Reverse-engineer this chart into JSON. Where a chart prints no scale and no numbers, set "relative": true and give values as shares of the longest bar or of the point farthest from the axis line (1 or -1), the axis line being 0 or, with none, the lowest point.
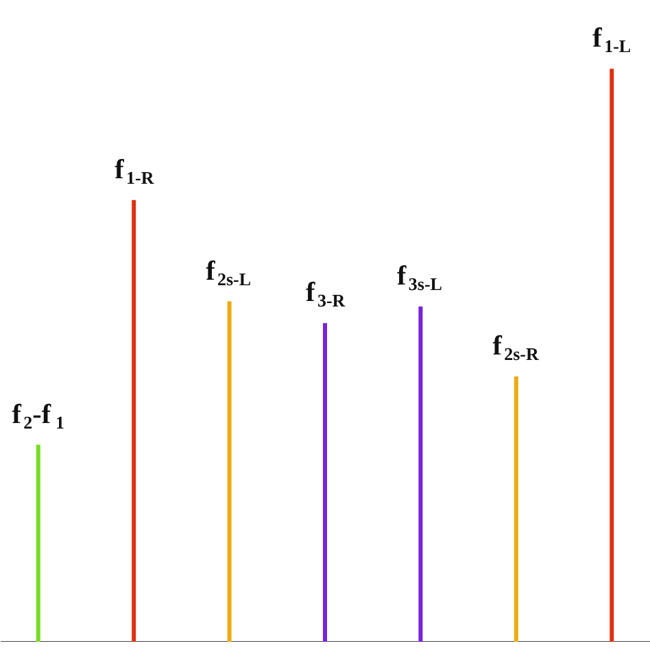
{
  "chart_data": {
    "type": "bar",
    "relative": true,
    "categories": [
      null,
      null,
      null,
      null,
      null,
      null,
      null
    ],
    "values": [
      0.344,
      0.771,
      0.594,
      0.556,
      0.585,
      0.463,
      1
    ],
    "colors": [
      "#77dd22",
      "#dd3311",
      "#eeaa11",
      "#7722dd",
      "#7722dd",
      "#eeaa11",
      "#dd3311"
    ],
    "annotations": [
      "f$_{2}$-f$_{1}$",
      "f$_{1-R}$",
      "f$_{2s-L}$",
      "f$_{3-R}$",
      "f$_{3s-L}$",
      "f$_{2s-R}$",
      "f$_{1-L}$"
    ]
  }
}
